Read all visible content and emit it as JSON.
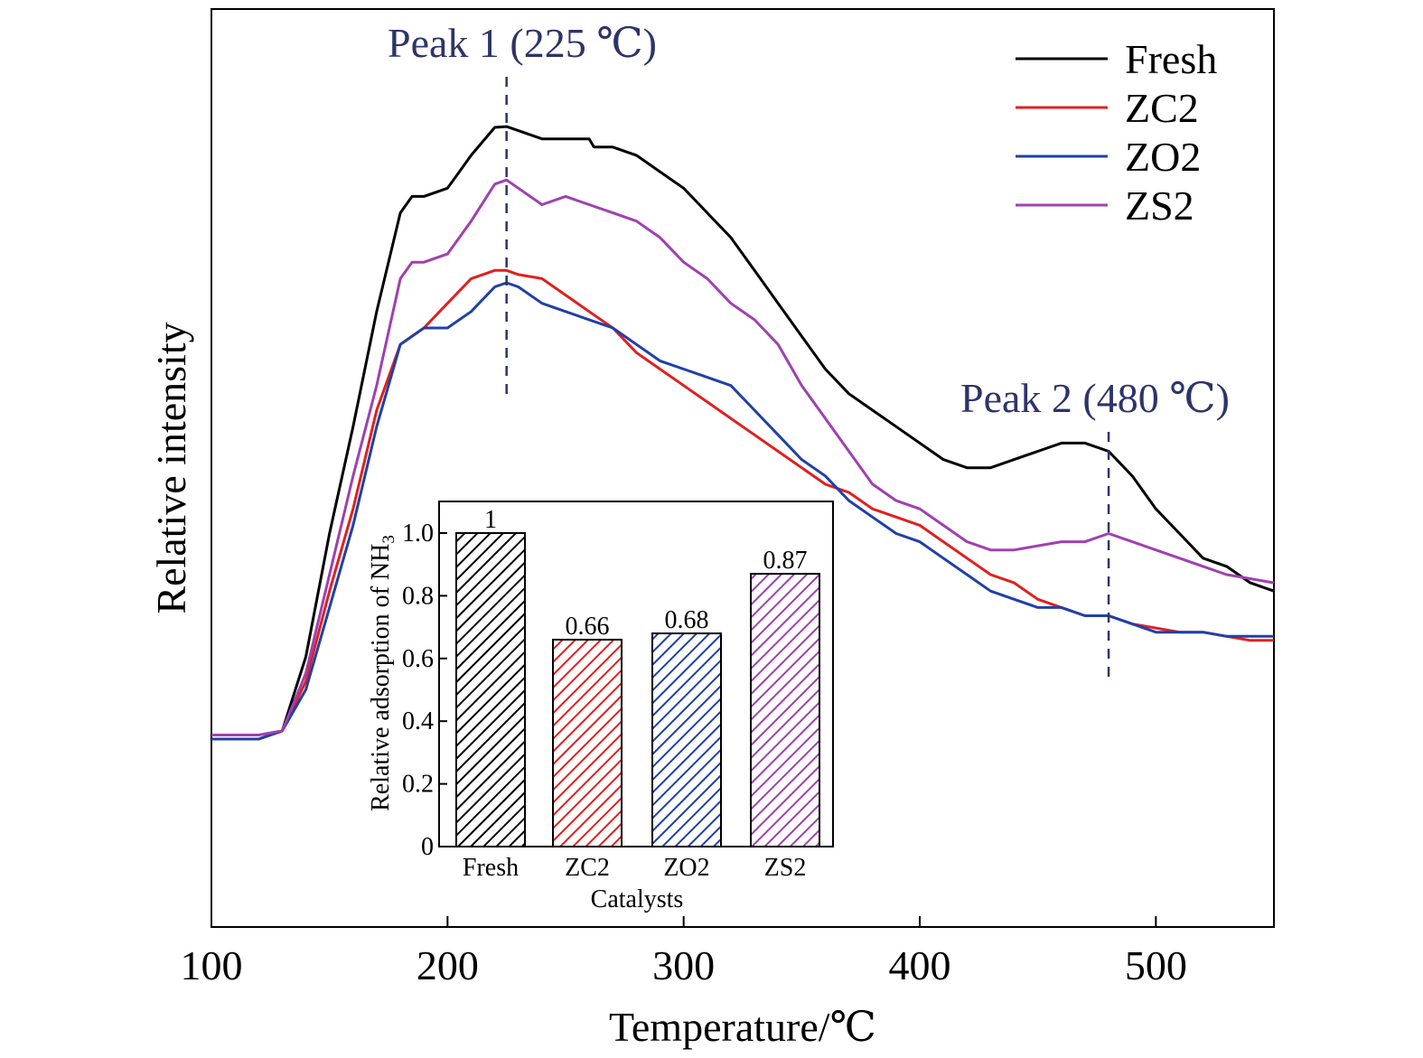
{
  "chart_data": [
    {
      "type": "line",
      "xlabel": "Temperature/℃",
      "ylabel": "Relative intensity",
      "xlim": [
        100,
        550
      ],
      "ylim": [
        0,
        1.0
      ],
      "x_ticks": [
        100,
        200,
        300,
        400,
        500
      ],
      "y_ticks_shown": false,
      "grid": false,
      "legend_position": "top-right",
      "annotations": [
        {
          "text": "Peak 1 (225 ℃)",
          "x": 225,
          "color": "#2e3468"
        },
        {
          "text": "Peak 2 (480 ℃)",
          "x": 480,
          "color": "#2e3468"
        }
      ],
      "series": [
        {
          "name": "Fresh",
          "color": "#000000",
          "x": [
            100,
            110,
            120,
            130,
            140,
            150,
            160,
            170,
            180,
            185,
            190,
            200,
            210,
            220,
            225,
            230,
            240,
            250,
            260,
            262,
            270,
            280,
            290,
            300,
            310,
            320,
            330,
            340,
            350,
            360,
            370,
            380,
            390,
            400,
            410,
            420,
            430,
            440,
            450,
            460,
            470,
            480,
            490,
            500,
            510,
            520,
            530,
            540,
            550
          ],
          "y": [
            0.2,
            0.2,
            0.2,
            0.21,
            0.3,
            0.45,
            0.58,
            0.72,
            0.84,
            0.86,
            0.86,
            0.87,
            0.91,
            0.944,
            0.945,
            0.94,
            0.93,
            0.93,
            0.93,
            0.92,
            0.92,
            0.91,
            0.89,
            0.87,
            0.84,
            0.81,
            0.77,
            0.73,
            0.69,
            0.65,
            0.62,
            0.6,
            0.58,
            0.56,
            0.54,
            0.53,
            0.53,
            0.54,
            0.55,
            0.56,
            0.56,
            0.55,
            0.52,
            0.48,
            0.45,
            0.42,
            0.41,
            0.39,
            0.38
          ]
        },
        {
          "name": "ZC2",
          "color": "#e02020",
          "x": [
            100,
            110,
            120,
            130,
            140,
            150,
            160,
            170,
            180,
            190,
            200,
            210,
            220,
            225,
            230,
            240,
            250,
            260,
            270,
            280,
            290,
            300,
            310,
            320,
            330,
            340,
            350,
            360,
            370,
            380,
            390,
            400,
            410,
            420,
            430,
            440,
            450,
            460,
            470,
            480,
            490,
            500,
            510,
            520,
            530,
            540,
            550
          ],
          "y": [
            0.2,
            0.2,
            0.2,
            0.21,
            0.27,
            0.38,
            0.48,
            0.6,
            0.68,
            0.7,
            0.73,
            0.76,
            0.77,
            0.77,
            0.765,
            0.76,
            0.74,
            0.72,
            0.7,
            0.67,
            0.65,
            0.63,
            0.61,
            0.59,
            0.57,
            0.55,
            0.53,
            0.51,
            0.5,
            0.48,
            0.47,
            0.46,
            0.44,
            0.42,
            0.4,
            0.39,
            0.37,
            0.36,
            0.35,
            0.35,
            0.34,
            0.335,
            0.33,
            0.33,
            0.325,
            0.32,
            0.32
          ]
        },
        {
          "name": "ZO2",
          "color": "#2040a8",
          "x": [
            100,
            110,
            120,
            130,
            140,
            150,
            160,
            170,
            180,
            190,
            200,
            210,
            220,
            225,
            230,
            240,
            250,
            260,
            270,
            280,
            290,
            300,
            310,
            320,
            330,
            340,
            350,
            360,
            370,
            380,
            390,
            400,
            410,
            420,
            430,
            440,
            450,
            460,
            470,
            480,
            490,
            500,
            510,
            520,
            530,
            540,
            550
          ],
          "y": [
            0.2,
            0.2,
            0.2,
            0.21,
            0.26,
            0.36,
            0.46,
            0.58,
            0.68,
            0.7,
            0.7,
            0.72,
            0.75,
            0.755,
            0.75,
            0.73,
            0.72,
            0.71,
            0.7,
            0.68,
            0.66,
            0.65,
            0.64,
            0.63,
            0.6,
            0.57,
            0.54,
            0.52,
            0.49,
            0.47,
            0.45,
            0.44,
            0.42,
            0.4,
            0.38,
            0.37,
            0.36,
            0.36,
            0.35,
            0.35,
            0.34,
            0.33,
            0.33,
            0.33,
            0.325,
            0.325,
            0.325
          ]
        },
        {
          "name": "ZS2",
          "color": "#a040b0",
          "x": [
            100,
            110,
            120,
            130,
            140,
            150,
            160,
            170,
            180,
            185,
            190,
            200,
            210,
            220,
            225,
            230,
            240,
            250,
            260,
            270,
            280,
            290,
            300,
            310,
            320,
            330,
            340,
            350,
            360,
            370,
            380,
            390,
            400,
            410,
            420,
            430,
            440,
            450,
            460,
            470,
            480,
            490,
            500,
            510,
            520,
            530,
            540,
            550
          ],
          "y": [
            0.205,
            0.205,
            0.205,
            0.21,
            0.28,
            0.4,
            0.52,
            0.63,
            0.76,
            0.78,
            0.78,
            0.79,
            0.83,
            0.875,
            0.88,
            0.87,
            0.85,
            0.86,
            0.85,
            0.84,
            0.83,
            0.81,
            0.78,
            0.76,
            0.73,
            0.71,
            0.68,
            0.63,
            0.59,
            0.55,
            0.51,
            0.49,
            0.48,
            0.46,
            0.44,
            0.43,
            0.43,
            0.435,
            0.44,
            0.44,
            0.45,
            0.44,
            0.43,
            0.42,
            0.41,
            0.4,
            0.395,
            0.39
          ]
        }
      ]
    },
    {
      "type": "bar",
      "xlabel": "Catalysts",
      "ylabel": "Relative adsorption of NH3",
      "ylabel_main": "Relative adsorption of NH",
      "ylabel_sub": "3",
      "ylim": [
        0,
        1.1
      ],
      "y_ticks": [
        "0",
        "0.2",
        "0.4",
        "0.6",
        "0.8",
        "1.0"
      ],
      "y_tick_values": [
        0,
        0.2,
        0.4,
        0.6,
        0.8,
        1.0
      ],
      "categories": [
        "Fresh",
        "ZC2",
        "ZO2",
        "ZS2"
      ],
      "values": [
        1,
        0.66,
        0.68,
        0.87
      ],
      "value_labels": [
        "1",
        "0.66",
        "0.68",
        "0.87"
      ],
      "colors": [
        "#000000",
        "#e02020",
        "#2040a8",
        "#a040b0"
      ],
      "fill": "diagonal hatch",
      "grid": false
    }
  ]
}
